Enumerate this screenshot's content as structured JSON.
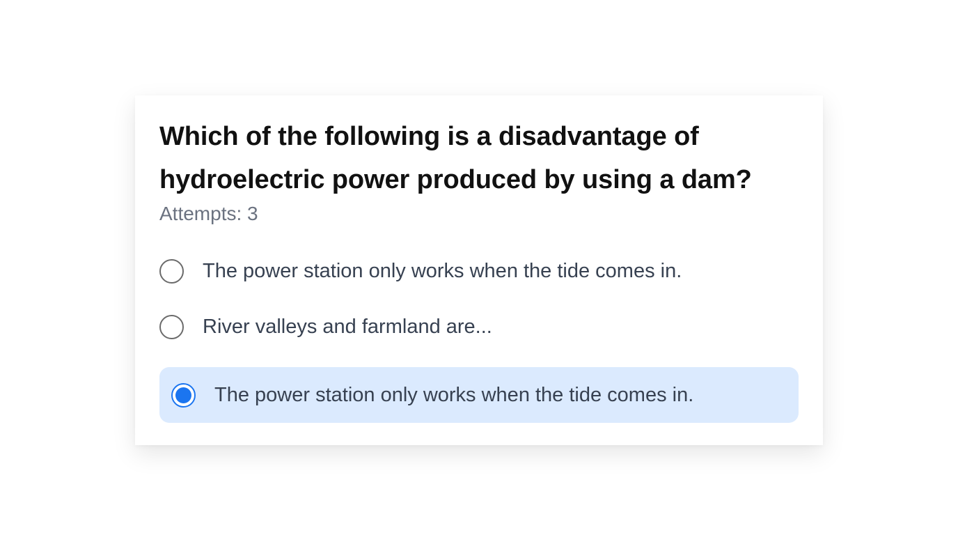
{
  "question": {
    "text": "Which of the following is a disadvantage of hydroelectric power produced by using a dam?",
    "attempts_label": "Attempts: 3"
  },
  "options": [
    {
      "label": "The power station only works when the tide comes in.",
      "selected": false
    },
    {
      "label": "River valleys and farmland are...",
      "selected": false
    },
    {
      "label": "The power station only works when the tide comes in.",
      "selected": true
    }
  ],
  "colors": {
    "accent": "#1b75f0",
    "selected_background": "#dbeafe",
    "muted_text": "#6b7280"
  }
}
